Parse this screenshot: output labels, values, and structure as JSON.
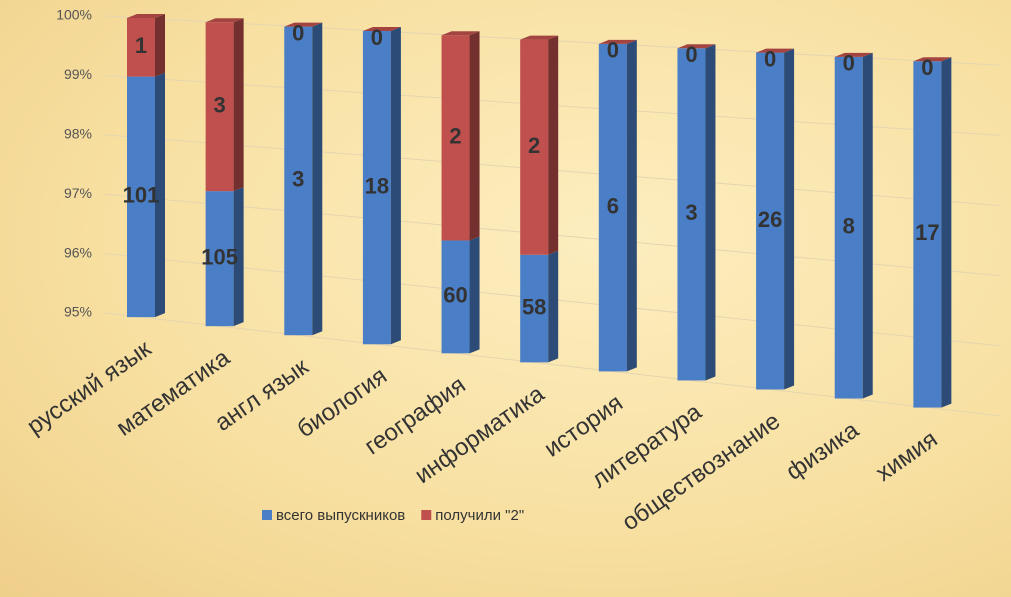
{
  "chart_data": {
    "type": "bar3d_percent_stacked",
    "categories": [
      "русский язык",
      "математика",
      "англ язык",
      "биология",
      "география",
      "информатика",
      "история",
      "литература",
      "обществознание",
      "физика",
      "химия"
    ],
    "series": [
      {
        "name": "всего выпускников",
        "color": "#4a7ec6",
        "values": [
          101,
          105,
          3,
          18,
          60,
          58,
          6,
          3,
          26,
          8,
          17
        ]
      },
      {
        "name": "получили \"2\"",
        "color": "#c0504d",
        "values": [
          1,
          3,
          0,
          0,
          2,
          2,
          0,
          0,
          0,
          0,
          0
        ]
      }
    ],
    "ylim": [
      95,
      100
    ],
    "yticks": [
      {
        "value": 95,
        "label": "95%"
      },
      {
        "value": 96,
        "label": "96%"
      },
      {
        "value": 97,
        "label": "97%"
      },
      {
        "value": 98,
        "label": "98%"
      },
      {
        "value": 99,
        "label": "99%"
      },
      {
        "value": 100,
        "label": "100%"
      }
    ],
    "grid": true,
    "legend": "bottom"
  }
}
